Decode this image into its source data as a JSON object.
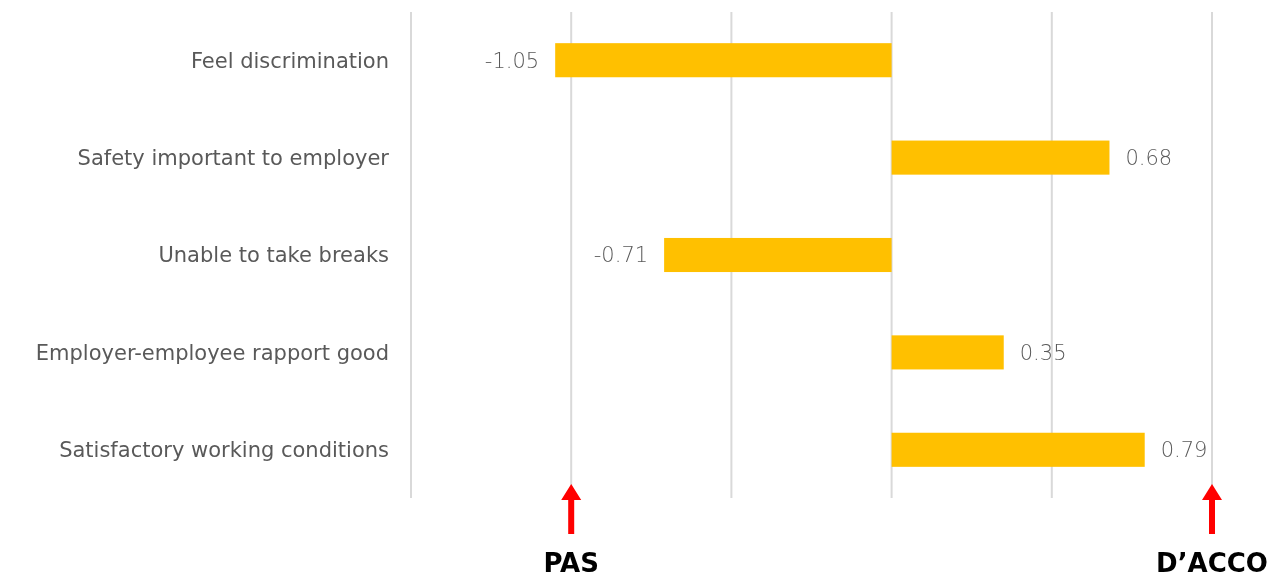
{
  "chart_data": {
    "type": "bar",
    "orientation": "horizontal",
    "categories": [
      "Feel discrimination",
      "Safety important to employer",
      "Unable to take breaks",
      "Employer-employee rapport good",
      "Satisfactory working conditions"
    ],
    "values": [
      -1.05,
      0.68,
      -0.71,
      0.35,
      0.79
    ],
    "color": "#ffc000",
    "data_labels": true,
    "xlim": [
      -1.5,
      1
    ],
    "xticks": [
      {
        "value": -1.5,
        "label": null
      },
      {
        "value": -1,
        "label": null
      },
      {
        "value": -0.5,
        "label": null
      },
      {
        "value": 0,
        "label": null
      },
      {
        "value": 0.5,
        "label": null
      },
      {
        "value": 1,
        "label": null
      }
    ],
    "grid": "x",
    "tick_labels": "y",
    "annotations": [
      "PAS",
      "D’ACCO"
    ]
  }
}
